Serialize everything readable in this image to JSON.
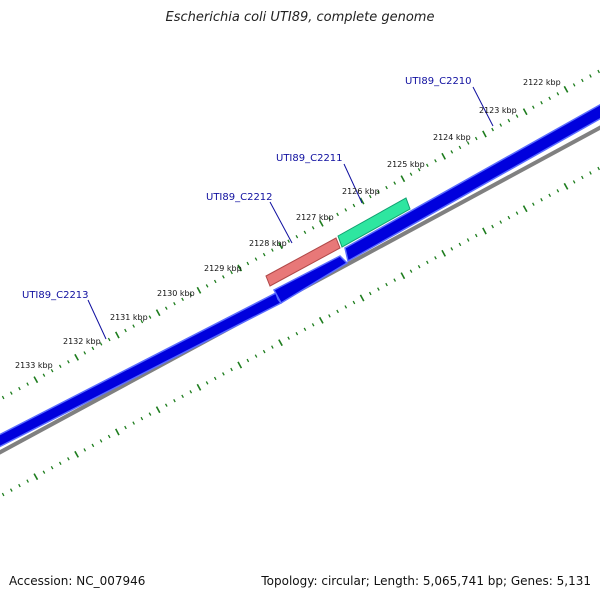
{
  "title": "Escherichia coli UTI89, complete genome",
  "footer": {
    "accession": "Accession: NC_007946",
    "summary": "Topology: circular; Length: 5,065,741 bp; Genes: 5,131"
  },
  "colors": {
    "background": "#ffffff",
    "cds_forward": "#0000dd",
    "genome_backbone": "#808080",
    "tick": "#1e7d1e",
    "gene_label": "#1010a0",
    "highlight_red": "#e87878",
    "highlight_green": "#2ee6a0"
  },
  "scale_labels": [
    "2122 kbp",
    "2123 kbp",
    "2124 kbp",
    "2125 kbp",
    "2126 kbp",
    "2127 kbp",
    "2128 kbp",
    "2129 kbp",
    "2130 kbp",
    "2131 kbp",
    "2132 kbp",
    "2133 kbp"
  ],
  "genes": [
    {
      "name": "UTI89_C2210"
    },
    {
      "name": "UTI89_C2211"
    },
    {
      "name": "UTI89_C2212"
    },
    {
      "name": "UTI89_C2213"
    }
  ]
}
